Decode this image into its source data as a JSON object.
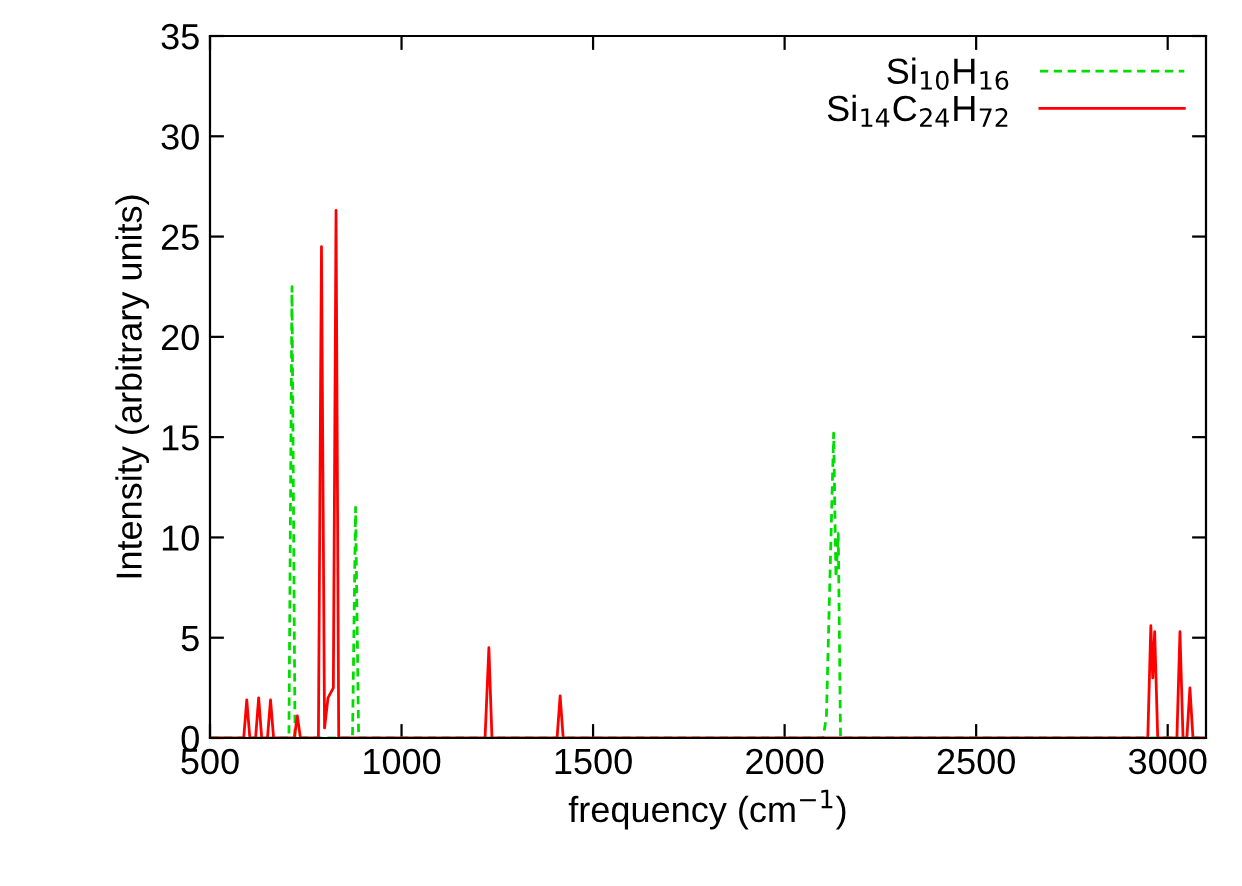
{
  "chart_data": {
    "type": "line",
    "xlabel": "frequency (cm$^{−1}$)",
    "ylabel": "Intensity (arbitrary units)",
    "xlim": [
      500,
      3100
    ],
    "ylim": [
      0,
      35
    ],
    "xticks": [
      500,
      1000,
      1500,
      2000,
      2500,
      3000
    ],
    "yticks": [
      0,
      5,
      10,
      15,
      20,
      25,
      30,
      35
    ],
    "grid": false,
    "legend": "top right",
    "series": [
      {
        "name": "Si$_{10}$H$_{16}$",
        "color": "#00dd00",
        "line_style": "dashed",
        "x": [
          500,
          706,
          714,
          722,
          872,
          880,
          888,
          2100,
          2109,
          2128,
          2134,
          2140,
          2146,
          3100
        ],
        "values": [
          0,
          0,
          22.5,
          0,
          0,
          11.5,
          0,
          0,
          1.0,
          15.2,
          8.0,
          10.2,
          0,
          0
        ]
      },
      {
        "name": "Si$_{14}$C$_{24}$H$_{72}$",
        "color": "#ff0000",
        "line_style": "solid",
        "x": [
          500,
          588,
          596,
          604,
          612,
          619,
          627,
          635,
          650,
          658,
          666,
          720,
          728,
          736,
          783,
          791,
          799,
          808,
          822,
          829,
          836,
          1218,
          1228,
          1236,
          1406,
          1414,
          1422,
          2948,
          2956,
          2961,
          2966,
          2974,
          3024,
          3032,
          3040,
          3050,
          3058,
          3066,
          3100
        ],
        "values": [
          0,
          0,
          1.9,
          0,
          0,
          0,
          2.0,
          0,
          0,
          1.9,
          0,
          0,
          1.1,
          0,
          0,
          24.5,
          0.5,
          2.0,
          2.5,
          26.3,
          0,
          0,
          4.5,
          0,
          0,
          2.1,
          0,
          0,
          5.6,
          3.0,
          5.3,
          0,
          0,
          5.3,
          0,
          0,
          2.5,
          0,
          0
        ]
      }
    ]
  }
}
